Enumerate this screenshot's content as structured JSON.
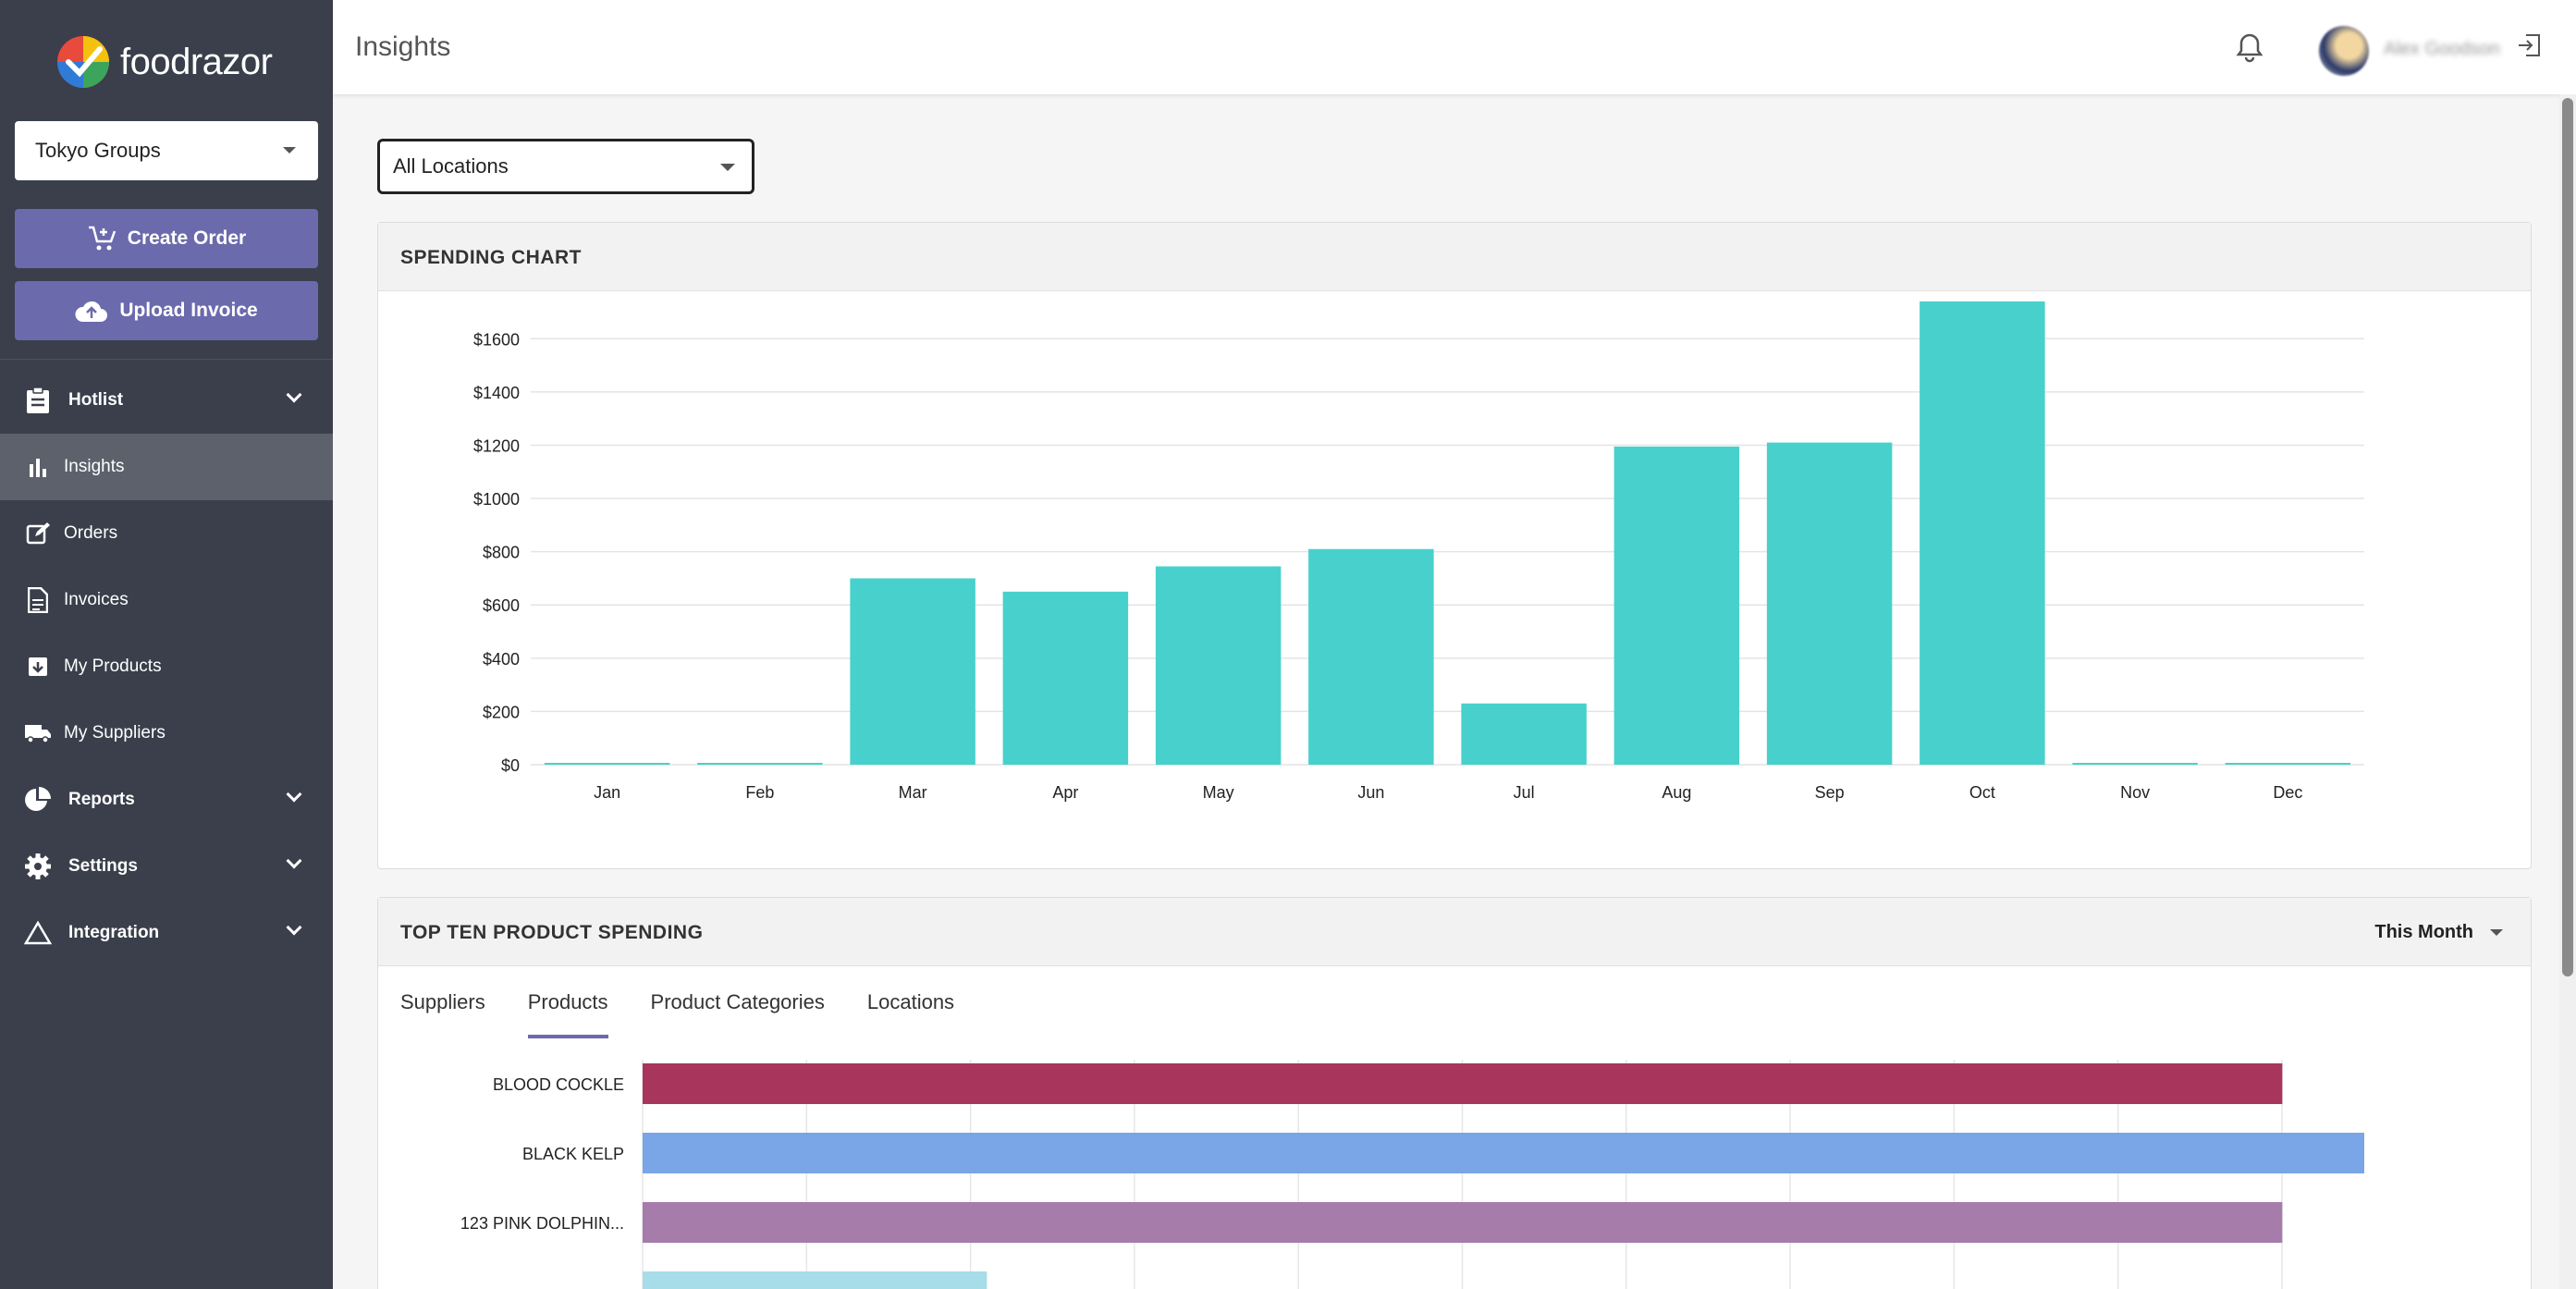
{
  "brand": {
    "name": "foodrazor"
  },
  "sidebar": {
    "org_select": "Tokyo Groups",
    "create_order": "Create Order",
    "upload_invoice": "Upload Invoice",
    "items": [
      {
        "label": "Hotlist",
        "icon": "clipboard-icon",
        "expandable": true
      },
      {
        "label": "Insights",
        "icon": "bar-chart-icon",
        "active": true
      },
      {
        "label": "Orders",
        "icon": "edit-icon"
      },
      {
        "label": "Invoices",
        "icon": "document-icon"
      },
      {
        "label": "My Products",
        "icon": "archive-icon"
      },
      {
        "label": "My Suppliers",
        "icon": "truck-icon"
      },
      {
        "label": "Reports",
        "icon": "pie-chart-icon",
        "expandable": true
      },
      {
        "label": "Settings",
        "icon": "gear-icon",
        "expandable": true
      },
      {
        "label": "Integration",
        "icon": "triangle-icon",
        "expandable": true
      }
    ]
  },
  "header": {
    "title": "Insights",
    "user_name": "Alex Goodson"
  },
  "filters": {
    "location": "All Locations"
  },
  "spending_card": {
    "title": "SPENDING CHART"
  },
  "top_card": {
    "title": "TOP TEN PRODUCT SPENDING",
    "period": "This Month",
    "tabs": [
      "Suppliers",
      "Products",
      "Product Categories",
      "Locations"
    ],
    "active_tab": 1
  },
  "colors": {
    "accent": "#6b6aad",
    "bar": "#48d1cc",
    "sidebar": "#3a3f4b"
  },
  "chart_data": [
    {
      "type": "bar",
      "title": "SPENDING CHART",
      "categories": [
        "Jan",
        "Feb",
        "Mar",
        "Apr",
        "May",
        "Jun",
        "Jul",
        "Aug",
        "Sep",
        "Oct",
        "Nov",
        "Dec"
      ],
      "values": [
        0,
        0,
        700,
        650,
        745,
        810,
        230,
        1195,
        1210,
        1740,
        0,
        0
      ],
      "ylim": [
        0,
        1740
      ],
      "yticks": [
        "$0",
        "$200",
        "$400",
        "$600",
        "$800",
        "$1000",
        "$1200",
        "$1400",
        "$1600"
      ],
      "tick_values": [
        0,
        200,
        400,
        600,
        800,
        1000,
        1200,
        1400,
        1600
      ],
      "grid": true
    },
    {
      "type": "bar",
      "orientation": "horizontal",
      "title": "TOP TEN PRODUCT SPENDING",
      "categories": [
        "BLOOD COCKLE",
        "BLACK KELP",
        "123 PINK DOLPHIN...",
        ""
      ],
      "values": [
        10,
        10.5,
        10,
        2.1
      ],
      "colors": [
        "#a8355c",
        "#7aa5e6",
        "#a67caa",
        "#a7dde8"
      ],
      "grid": true
    }
  ]
}
